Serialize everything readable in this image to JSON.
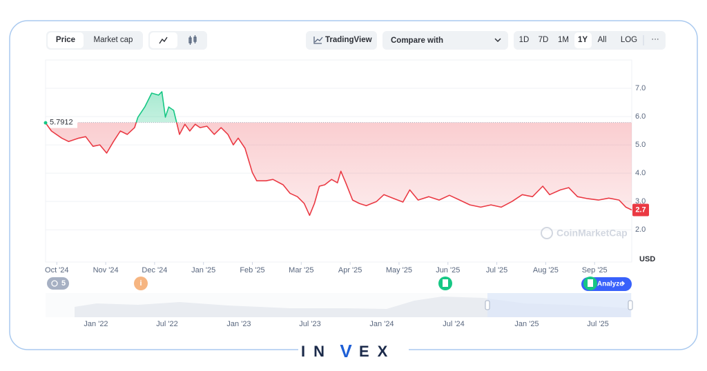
{
  "toolbar": {
    "tabs": [
      "Price",
      "Market cap"
    ],
    "tradingview": "TradingView",
    "compare": "Compare with",
    "ranges": [
      "1D",
      "7D",
      "1M",
      "1Y",
      "All",
      "LOG"
    ],
    "more": "···"
  },
  "chart_data": {
    "type": "line",
    "y_unit": "USD",
    "x": [
      -0.23,
      -0.11,
      0.1,
      0.24,
      0.45,
      0.59,
      0.74,
      0.88,
      1.02,
      1.16,
      1.3,
      1.44,
      1.59,
      1.66,
      1.8,
      1.94,
      2.08,
      2.15,
      2.22,
      2.29,
      2.39,
      2.51,
      2.62,
      2.72,
      2.83,
      2.93,
      3.07,
      3.22,
      3.36,
      3.5,
      3.61,
      3.71,
      3.85,
      4.0,
      4.09,
      4.28,
      4.42,
      4.63,
      4.77,
      4.92,
      5.06,
      5.17,
      5.27,
      5.37,
      5.48,
      5.62,
      5.74,
      5.81,
      5.91,
      6.05,
      6.19,
      6.33,
      6.54,
      6.69,
      6.9,
      7.08,
      7.22,
      7.39,
      7.61,
      7.82,
      8.03,
      8.24,
      8.45,
      8.67,
      8.88,
      9.09,
      9.31,
      9.52,
      9.73,
      9.94,
      10.08,
      10.3,
      10.47,
      10.65,
      10.86,
      11.08,
      11.29,
      11.5,
      11.64,
      11.76
    ],
    "values": [
      5.78,
      5.49,
      5.24,
      5.12,
      5.24,
      5.29,
      4.95,
      5.0,
      4.71,
      5.12,
      5.49,
      5.37,
      5.61,
      5.98,
      6.34,
      6.83,
      6.76,
      6.88,
      5.98,
      6.34,
      6.22,
      5.37,
      5.73,
      5.49,
      5.73,
      5.61,
      5.66,
      5.37,
      5.61,
      5.37,
      5.0,
      5.24,
      4.88,
      4.02,
      3.73,
      3.73,
      3.78,
      3.59,
      3.29,
      3.17,
      2.93,
      2.51,
      2.93,
      3.54,
      3.59,
      3.78,
      3.66,
      4.07,
      3.66,
      3.05,
      2.93,
      2.85,
      3.0,
      3.24,
      3.1,
      2.98,
      3.41,
      3.05,
      3.17,
      3.05,
      3.22,
      3.05,
      2.88,
      2.8,
      2.88,
      2.8,
      3.0,
      3.24,
      3.17,
      3.54,
      3.24,
      3.41,
      3.49,
      3.17,
      3.1,
      3.05,
      3.12,
      3.05,
      2.8,
      2.7
    ],
    "baseline": 5.7912,
    "up_color": "#16c784",
    "down_color": "#ea3943",
    "xlim": [
      -0.23,
      11.76
    ],
    "xticks": [
      {
        "value": 0,
        "label": "Oct '24"
      },
      {
        "value": 1,
        "label": "Nov '24"
      },
      {
        "value": 2,
        "label": "Dec '24"
      },
      {
        "value": 3,
        "label": "Jan '25"
      },
      {
        "value": 4,
        "label": "Feb '25"
      },
      {
        "value": 5,
        "label": "Mar '25"
      },
      {
        "value": 6,
        "label": "Apr '25"
      },
      {
        "value": 7,
        "label": "May '25"
      },
      {
        "value": 8,
        "label": "Jun '25"
      },
      {
        "value": 9,
        "label": "Jul '25"
      },
      {
        "value": 10,
        "label": "Aug '25"
      },
      {
        "value": 11,
        "label": "Sep '25"
      }
    ],
    "ylim": [
      0.86,
      8.0
    ],
    "yticks": [
      {
        "value": 2,
        "label": "2.0"
      },
      {
        "value": 3,
        "label": "3.0"
      },
      {
        "value": 4,
        "label": "4.0"
      },
      {
        "value": 5,
        "label": "5.0"
      },
      {
        "value": 6,
        "label": "6.0"
      },
      {
        "value": 7,
        "label": "7.0"
      }
    ],
    "grid": true
  },
  "event_count": 5,
  "info": "i",
  "analyze": "Analyze",
  "watermark": "CoinMarketCap",
  "navigator": {
    "labels": [
      "Jan '22",
      "Jul '22",
      "Jan '23",
      "Jul '23",
      "Jan '24",
      "Jul '24",
      "Jan '25",
      "Jul '25"
    ]
  },
  "brand": {
    "left": "IN",
    "middle": "V",
    "right": "EX"
  }
}
